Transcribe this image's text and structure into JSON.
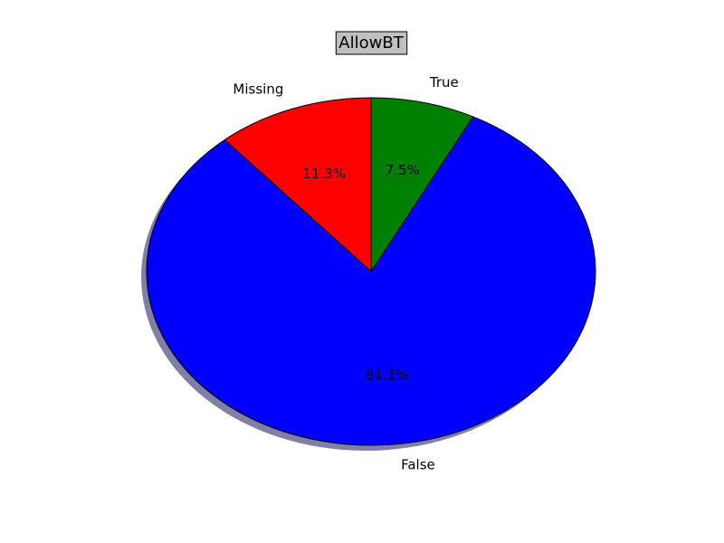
{
  "chart_data": {
    "type": "pie",
    "title": "AllowBT",
    "start_angle_deg": 90,
    "direction": "counterclockwise",
    "shadow": true,
    "slices": [
      {
        "label": "Missing",
        "value": 11.3,
        "pct_label": "11.3%",
        "color": "#ff0000"
      },
      {
        "label": "False",
        "value": 81.1,
        "pct_label": "81.1%",
        "color": "#0000ff"
      },
      {
        "label": "True",
        "value": 7.5,
        "pct_label": "7.5%",
        "color": "#008000"
      }
    ]
  },
  "style": {
    "title_box_fill": "#c0c0c0",
    "edge_color": "#000000",
    "shadow_color": "#000050"
  }
}
